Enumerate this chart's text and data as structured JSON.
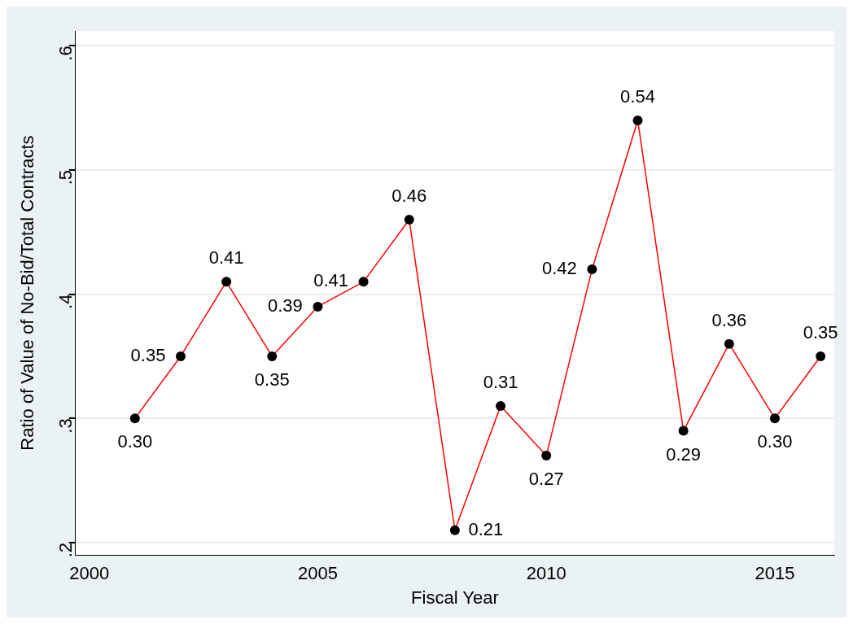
{
  "chart_data": {
    "type": "line",
    "xlabel": "Fiscal Year",
    "ylabel": "Ratio of Value of No-Bid/Total Contracts",
    "x": [
      2001,
      2002,
      2003,
      2004,
      2005,
      2006,
      2007,
      2008,
      2009,
      2010,
      2011,
      2012,
      2013,
      2014,
      2015,
      2016
    ],
    "series": [
      {
        "color": "#ff0000",
        "values": [
          0.3,
          0.35,
          0.41,
          0.35,
          0.39,
          0.41,
          0.46,
          0.21,
          0.31,
          0.27,
          0.42,
          0.54,
          0.29,
          0.36,
          0.3,
          0.35
        ],
        "value_labels": [
          "0.30",
          "0.35",
          "0.41",
          "0.35",
          "0.39",
          "0.41",
          "0.46",
          "0.21",
          "0.31",
          "0.27",
          "0.42",
          "0.54",
          "0.29",
          "0.36",
          "0.30",
          "0.35"
        ]
      }
    ],
    "xlim": [
      1999.7,
      2016.3
    ],
    "xticks": [
      2000,
      2005,
      2010,
      2015
    ],
    "ylim": [
      0.19,
      0.612
    ],
    "yticks": [
      {
        "value": 0.2,
        "label": ".2"
      },
      {
        "value": 0.3,
        "label": ".3"
      },
      {
        "value": 0.4,
        "label": ".4"
      },
      {
        "value": 0.5,
        "label": ".5"
      },
      {
        "value": 0.6,
        "label": ".6"
      }
    ],
    "grid": "y",
    "marker": "circle",
    "legend": false
  }
}
